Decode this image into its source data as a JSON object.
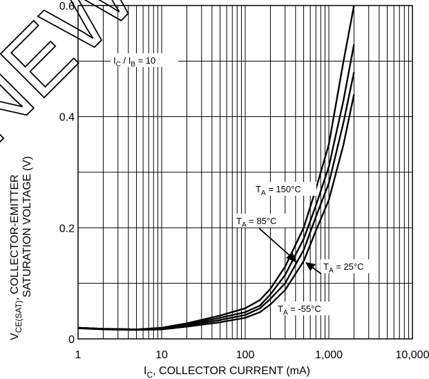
{
  "chart_data": {
    "type": "line",
    "x_scale": "log",
    "xlim": [
      1,
      10000
    ],
    "ylim": [
      0,
      0.6
    ],
    "grid": true,
    "x_ticks": [
      "1",
      "10",
      "100",
      "1,000",
      "10,000"
    ],
    "y_ticks": [
      "0",
      "0.2",
      "0.4",
      "0.6"
    ],
    "xlabel": {
      "main": "I",
      "sub": "C",
      "rest": ", COLLECTOR CURRENT (mA)"
    },
    "ylabel": {
      "line1_main": "V",
      "line1_sub": "CE(SAT)",
      "line1_rest": ", COLLECTOR-EMITTER",
      "line2": "SATURATION VOLTAGE (V)"
    },
    "condition": {
      "main1": "I",
      "sub1": "C",
      "mid": " / I",
      "sub2": "B",
      "rest": " = 10"
    },
    "series": [
      {
        "name": "T_A = 150°C",
        "label": {
          "main": "T",
          "sub": "A",
          "rest": " = 150°C"
        },
        "points": [
          [
            1,
            0.02
          ],
          [
            2,
            0.018
          ],
          [
            5,
            0.017
          ],
          [
            10,
            0.02
          ],
          [
            20,
            0.028
          ],
          [
            50,
            0.042
          ],
          [
            100,
            0.055
          ],
          [
            150,
            0.07
          ],
          [
            200,
            0.09
          ],
          [
            300,
            0.13
          ],
          [
            500,
            0.2
          ],
          [
            700,
            0.27
          ],
          [
            1000,
            0.35
          ],
          [
            1500,
            0.5
          ],
          [
            2000,
            0.6
          ]
        ]
      },
      {
        "name": "T_A = 85°C",
        "label": {
          "main": "T",
          "sub": "A",
          "rest": " = 85°C"
        },
        "points": [
          [
            1,
            0.02
          ],
          [
            2,
            0.018
          ],
          [
            5,
            0.017
          ],
          [
            10,
            0.019
          ],
          [
            20,
            0.026
          ],
          [
            50,
            0.038
          ],
          [
            100,
            0.048
          ],
          [
            150,
            0.06
          ],
          [
            200,
            0.08
          ],
          [
            300,
            0.115
          ],
          [
            500,
            0.18
          ],
          [
            700,
            0.24
          ],
          [
            1000,
            0.31
          ],
          [
            1500,
            0.43
          ],
          [
            2000,
            0.53
          ]
        ]
      },
      {
        "name": "T_A = 25°C",
        "label": {
          "main": "T",
          "sub": "A",
          "rest": " = 25°C"
        },
        "points": [
          [
            1,
            0.02
          ],
          [
            2,
            0.018
          ],
          [
            5,
            0.017
          ],
          [
            10,
            0.018
          ],
          [
            20,
            0.024
          ],
          [
            50,
            0.034
          ],
          [
            100,
            0.043
          ],
          [
            150,
            0.055
          ],
          [
            200,
            0.072
          ],
          [
            300,
            0.1
          ],
          [
            500,
            0.16
          ],
          [
            700,
            0.22
          ],
          [
            1000,
            0.28
          ],
          [
            1500,
            0.39
          ],
          [
            2000,
            0.48
          ]
        ]
      },
      {
        "name": "T_A = -55°C",
        "label": {
          "main": "T",
          "sub": "A",
          "rest": " = -55°C"
        },
        "points": [
          [
            1,
            0.019
          ],
          [
            2,
            0.017
          ],
          [
            5,
            0.016
          ],
          [
            10,
            0.017
          ],
          [
            20,
            0.022
          ],
          [
            50,
            0.03
          ],
          [
            100,
            0.038
          ],
          [
            150,
            0.048
          ],
          [
            200,
            0.062
          ],
          [
            300,
            0.088
          ],
          [
            500,
            0.14
          ],
          [
            700,
            0.195
          ],
          [
            1000,
            0.25
          ],
          [
            1500,
            0.35
          ],
          [
            2000,
            0.44
          ]
        ]
      }
    ],
    "watermark": {
      "text": "NEW DESIGNS",
      "color": "#000000"
    },
    "colors": {
      "line": "#000000",
      "background": "#ffffff"
    }
  }
}
